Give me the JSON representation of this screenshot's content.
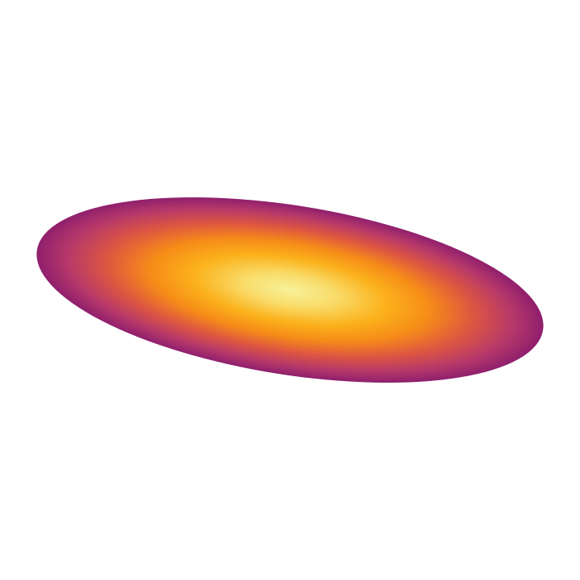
{
  "scene": {
    "background_color": "#ffffff",
    "shape": "rotated-ellipse-with-radial-gradient",
    "colormap": "inferno-like",
    "gradient_stops": [
      {
        "offset": 0.0,
        "color": "#f7f29b"
      },
      {
        "offset": 0.18,
        "color": "#f9dc6a"
      },
      {
        "offset": 0.38,
        "color": "#fbb11b"
      },
      {
        "offset": 0.55,
        "color": "#f68c18"
      },
      {
        "offset": 0.72,
        "color": "#de5740"
      },
      {
        "offset": 0.88,
        "color": "#b6386a"
      },
      {
        "offset": 1.0,
        "color": "#8f1f6d"
      }
    ]
  }
}
